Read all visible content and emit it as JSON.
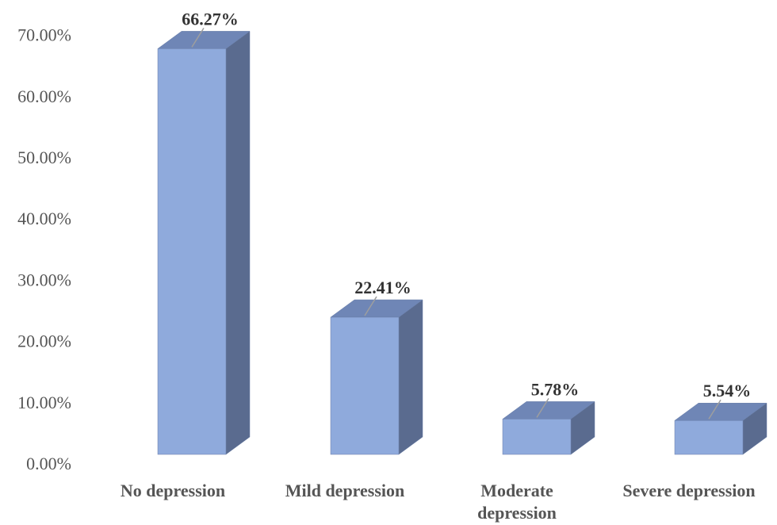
{
  "chart_data": {
    "type": "bar",
    "style": "3d-column",
    "categories": [
      [
        "No  depression"
      ],
      [
        "Mild depression"
      ],
      [
        "Moderate",
        "depression"
      ],
      [
        "Severe depression"
      ]
    ],
    "values": [
      66.27,
      22.41,
      5.78,
      5.54
    ],
    "data_labels": [
      "66.27%",
      "22.41%",
      "5.78%",
      "5.54%"
    ],
    "y_ticks": [
      "0.00%",
      "10.00%",
      "20.00%",
      "30.00%",
      "40.00%",
      "50.00%",
      "60.00%",
      "70.00%"
    ],
    "ylim": [
      0,
      70
    ],
    "grid": false,
    "legend": "none",
    "colors": {
      "front": "#8faadc",
      "side": "#5a6b8f",
      "top": "#6f86b6",
      "edge": "#6a7fa8",
      "leader": "#9e9e9e"
    }
  }
}
